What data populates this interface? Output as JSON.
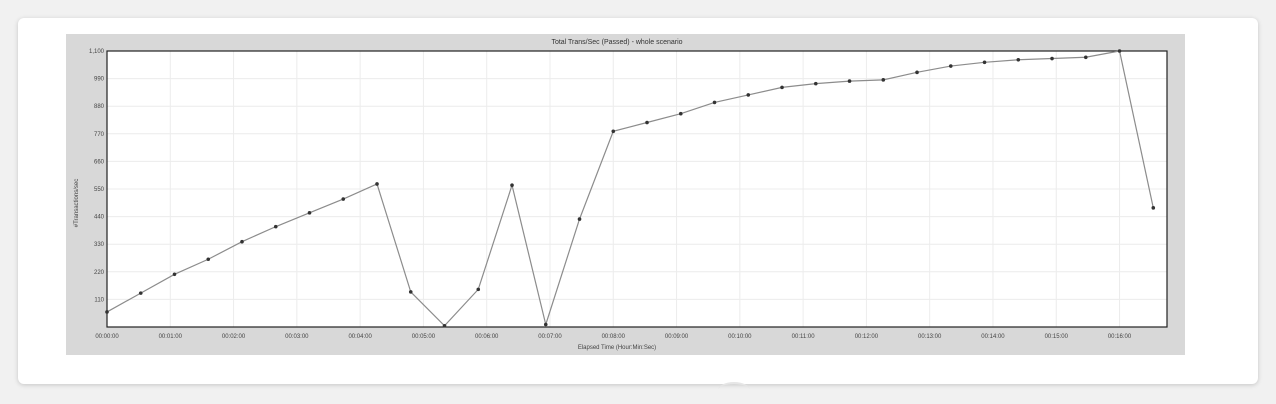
{
  "chart_data": {
    "type": "line",
    "title": "Total Trans/Sec (Passed) - whole scenario",
    "xlabel": "Elapsed Time (Hour:Min:Sec)",
    "ylabel": "#Transactions/sec",
    "ylim": [
      0,
      1100
    ],
    "yticks": [
      "110",
      "220",
      "330",
      "440",
      "550",
      "660",
      "770",
      "880",
      "990",
      "1,100"
    ],
    "ytick_values": [
      110,
      220,
      330,
      440,
      550,
      660,
      770,
      880,
      990,
      1100
    ],
    "xticks": [
      "00:00:00",
      "00:01:00",
      "00:02:00",
      "00:03:00",
      "00:04:00",
      "00:05:00",
      "00:06:00",
      "00:07:00",
      "00:08:00",
      "00:09:00",
      "00:10:00",
      "00:11:00",
      "00:12:00",
      "00:13:00",
      "00:14:00",
      "00:15:00",
      "00:16:00"
    ],
    "xtick_seconds": [
      0,
      60,
      120,
      180,
      240,
      300,
      360,
      420,
      480,
      540,
      600,
      660,
      720,
      780,
      840,
      900,
      960
    ],
    "xlim_seconds": [
      0,
      1005
    ],
    "grid": true,
    "series": [
      {
        "x_seconds": [
          0,
          32,
          64,
          96,
          128,
          160,
          192,
          224,
          256,
          288,
          320,
          352,
          384,
          416,
          448,
          480,
          512,
          544,
          576,
          608,
          640,
          672,
          704,
          736,
          768,
          800,
          832,
          864,
          896,
          928,
          960,
          992
        ],
        "values": [
          60,
          135,
          210,
          270,
          340,
          400,
          455,
          510,
          570,
          140,
          5,
          150,
          565,
          10,
          430,
          780,
          815,
          850,
          895,
          925,
          955,
          970,
          980,
          985,
          1015,
          1040,
          1055,
          1065,
          1070,
          1075,
          1100,
          475
        ]
      }
    ]
  },
  "colors": {
    "line": "#8c8c8c",
    "marker": "#333333",
    "plot_bg": "#ffffff",
    "frame_bg": "#d8d8d8",
    "grid": "#ececec"
  }
}
